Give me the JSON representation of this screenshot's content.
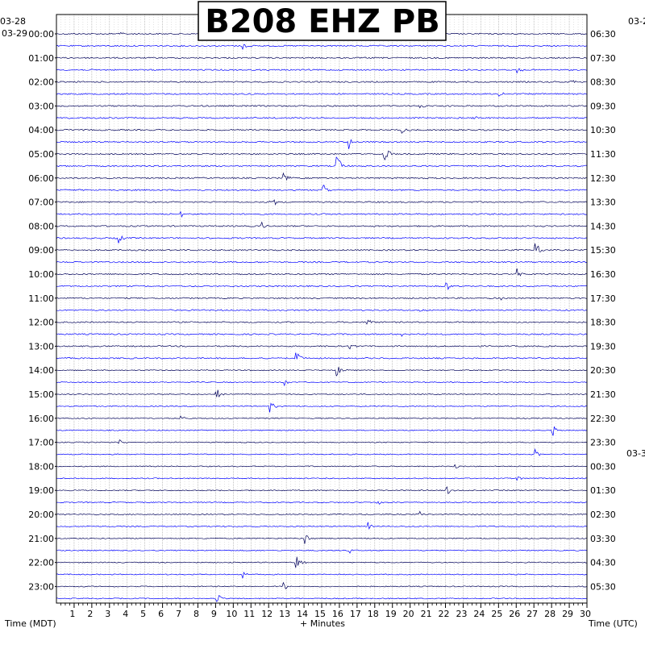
{
  "chart_data": {
    "type": "line",
    "title": "B208 EHZ PB",
    "xlabel": "+ Minutes",
    "xlim": [
      0,
      30
    ],
    "x_ticks": [
      1,
      2,
      3,
      4,
      5,
      6,
      7,
      8,
      9,
      10,
      11,
      12,
      13,
      14,
      15,
      16,
      17,
      18,
      19,
      20,
      21,
      22,
      23,
      24,
      25,
      26,
      27,
      28,
      29,
      30
    ],
    "left_axis_label": "Time (MDT)",
    "right_axis_label": "Time (UTC)",
    "left_date_top": "03-28",
    "left_date": "03-29",
    "right_date_top": "03-2",
    "right_date_mid": "03-3",
    "left_hours": [
      "00:00",
      "01:00",
      "02:00",
      "03:00",
      "04:00",
      "05:00",
      "06:00",
      "07:00",
      "08:00",
      "09:00",
      "10:00",
      "11:00",
      "12:00",
      "13:00",
      "14:00",
      "15:00",
      "16:00",
      "17:00",
      "18:00",
      "19:00",
      "20:00",
      "21:00",
      "22:00",
      "23:00"
    ],
    "right_hours": [
      "06:30",
      "07:30",
      "08:30",
      "09:30",
      "10:30",
      "11:30",
      "12:30",
      "13:30",
      "14:30",
      "15:30",
      "16:30",
      "17:30",
      "18:30",
      "19:30",
      "20:30",
      "21:30",
      "22:30",
      "23:30",
      "00:30",
      "01:30",
      "02:30",
      "03:30",
      "04:30",
      "05:30"
    ],
    "traces_per_hour": 2,
    "trace_colors": [
      "#00005a",
      "#0000ff"
    ],
    "clip_color": "#ff0000",
    "grid": true,
    "series": [
      {
        "values": [
          [
            3.5,
            8,
            6
          ],
          [
            7,
            7,
            5
          ],
          [
            9,
            16,
            4
          ],
          [
            10.5,
            14,
            5
          ],
          [
            11.5,
            14,
            6
          ],
          [
            12,
            20,
            5
          ],
          [
            12.8,
            16,
            6
          ],
          [
            13.5,
            22,
            5
          ],
          [
            14,
            18,
            4
          ],
          [
            15,
            14,
            5
          ],
          [
            15.8,
            20,
            5
          ],
          [
            16.5,
            12,
            6
          ],
          [
            17.5,
            22,
            6
          ],
          [
            18,
            18,
            5
          ],
          [
            18.5,
            14,
            5
          ],
          [
            19.5,
            10,
            6
          ],
          [
            20.5,
            12,
            5
          ],
          [
            22,
            18,
            6
          ],
          [
            22.5,
            10,
            4
          ],
          [
            23.5,
            8,
            5
          ],
          [
            25,
            14,
            6
          ],
          [
            26,
            10,
            5
          ],
          [
            27,
            16,
            5
          ],
          [
            28,
            18,
            5
          ],
          [
            29,
            10,
            4
          ],
          [
            30,
            10,
            3
          ]
        ]
      }
    ]
  }
}
